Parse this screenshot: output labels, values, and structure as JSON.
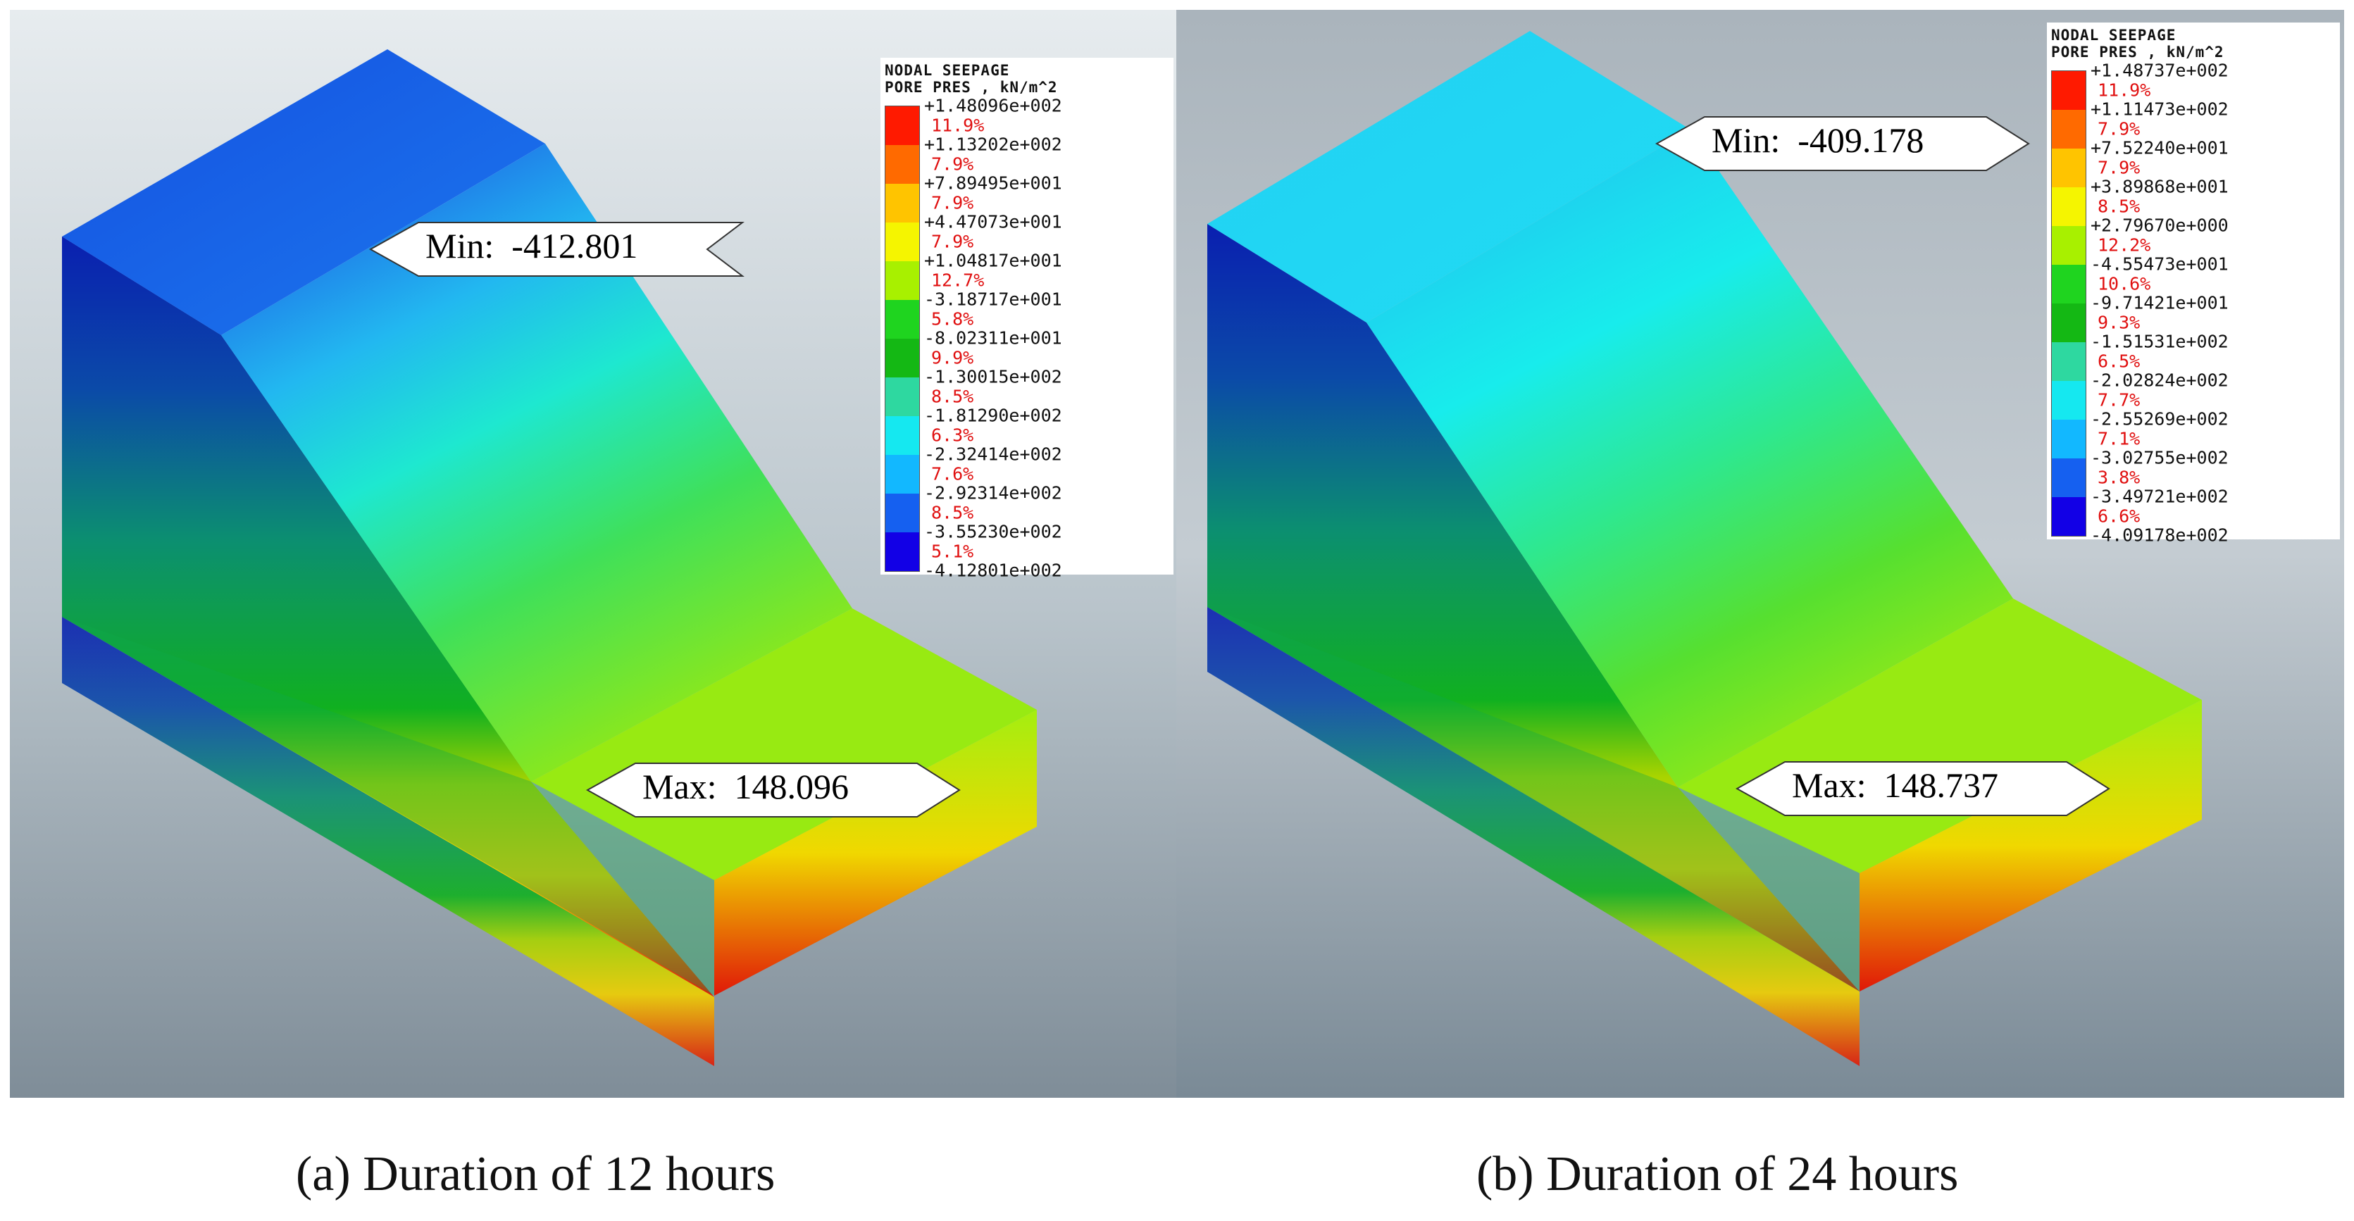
{
  "panels": [
    {
      "id": "a",
      "legend": {
        "title_line1": "NODAL SEEPAGE",
        "title_line2": "PORE PRES , kN/m^2",
        "values": [
          "+1.48096e+002",
          "+1.13202e+002",
          "+7.89495e+001",
          "+4.47073e+001",
          "+1.04817e+001",
          "-3.18717e+001",
          "-8.02311e+001",
          "-1.30015e+002",
          "-1.81290e+002",
          "-2.32414e+002",
          "-2.92314e+002",
          "-3.55230e+002",
          "-4.12801e+002"
        ],
        "percents": [
          "11.9%",
          "7.9%",
          "7.9%",
          "7.9%",
          "12.7%",
          "5.8%",
          "9.9%",
          "8.5%",
          "6.3%",
          "7.6%",
          "8.5%",
          "5.1%"
        ]
      },
      "min_label": "Min:  -412.801",
      "max_label": "Max:  148.096",
      "caption": "(a) Duration of 12 hours"
    },
    {
      "id": "b",
      "legend": {
        "title_line1": "NODAL SEEPAGE",
        "title_line2": "PORE PRES , kN/m^2",
        "values": [
          "+1.48737e+002",
          "+1.11473e+002",
          "+7.52240e+001",
          "+3.89868e+001",
          "+2.79670e+000",
          "-4.55473e+001",
          "-9.71421e+001",
          "-1.51531e+002",
          "-2.02824e+002",
          "-2.55269e+002",
          "-3.02755e+002",
          "-3.49721e+002",
          "-4.09178e+002"
        ],
        "percents": [
          "11.9%",
          "7.9%",
          "7.9%",
          "8.5%",
          "12.2%",
          "10.6%",
          "9.3%",
          "6.5%",
          "7.7%",
          "7.1%",
          "3.8%",
          "6.6%"
        ]
      },
      "min_label": "Min:  -409.178",
      "max_label": "Max:  148.737",
      "caption": "(b) Duration of 24 hours"
    }
  ],
  "legend_colors": [
    "#ff1a00",
    "#ff6a00",
    "#ffc400",
    "#f5f500",
    "#a8f000",
    "#1fd41f",
    "#14b814",
    "#2ed8a0",
    "#15e8f0",
    "#12b8ff",
    "#1560f0",
    "#1200e6"
  ]
}
